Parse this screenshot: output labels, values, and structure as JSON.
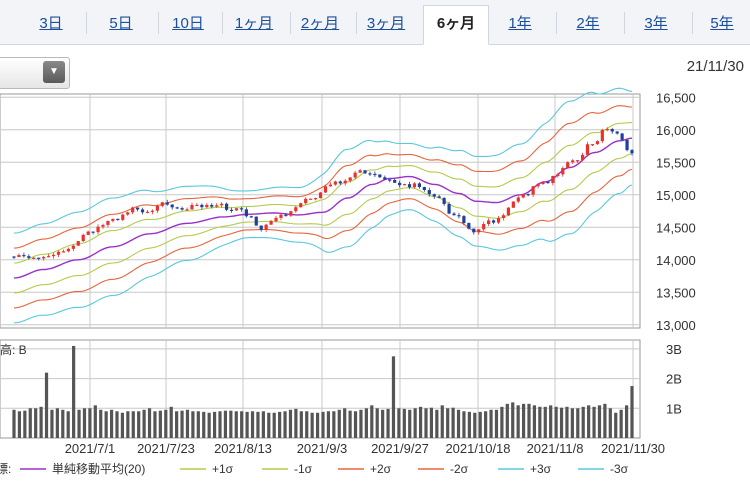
{
  "tabs": [
    {
      "label": "3日",
      "active": false
    },
    {
      "label": "5日",
      "active": false
    },
    {
      "label": "10日",
      "active": false
    },
    {
      "label": "1ヶ月",
      "active": false
    },
    {
      "label": "2ヶ月",
      "active": false
    },
    {
      "label": "3ヶ月",
      "active": false
    },
    {
      "label": "6ヶ月",
      "active": true
    },
    {
      "label": "1年",
      "active": false
    },
    {
      "label": "2年",
      "active": false
    },
    {
      "label": "3年",
      "active": false
    },
    {
      "label": "5年",
      "active": false
    }
  ],
  "dropdown": {
    "icon": "chevron-down-icon"
  },
  "as_of_date": "21/11/30",
  "chart_data": {
    "type": "line",
    "price_axis": {
      "ticks": [
        "16,500",
        "16,000",
        "15,500",
        "15,000",
        "14,500",
        "14,000",
        "13,500",
        "13,000"
      ],
      "ylim": [
        12950,
        16550
      ]
    },
    "x_ticks": [
      "2021/7/1",
      "2021/7/23",
      "2021/8/13",
      "2021/9/3",
      "2021/9/27",
      "2021/10/18",
      "2021/11/8",
      "2021/11/30"
    ],
    "volume_axis": {
      "ticks": [
        "3B",
        "2B",
        "1B"
      ]
    },
    "volume_prefix": "出来高: B",
    "legend_prefix": "指標:",
    "series": [
      {
        "name": "単純移動平均(20)",
        "color": "#9b30c8"
      },
      {
        "name": "+1σ",
        "color": "#b4cc4a"
      },
      {
        "name": "-1σ",
        "color": "#b4cc4a"
      },
      {
        "name": "+2σ",
        "color": "#e8663d"
      },
      {
        "name": "-2σ",
        "color": "#e8663d"
      },
      {
        "name": "+3σ",
        "color": "#5ac8dc"
      },
      {
        "name": "-3σ",
        "color": "#5ac8dc"
      }
    ],
    "mid_points": [
      [
        0,
        13720
      ],
      [
        12,
        13850
      ],
      [
        26,
        14000
      ],
      [
        40,
        14200
      ],
      [
        55,
        14400
      ],
      [
        70,
        14560
      ],
      [
        85,
        14660
      ],
      [
        95,
        14700
      ],
      [
        105,
        14720
      ],
      [
        115,
        14690
      ],
      [
        125,
        14730
      ],
      [
        135,
        14950
      ],
      [
        145,
        15160
      ],
      [
        152,
        15250
      ],
      [
        160,
        15280
      ],
      [
        170,
        15160
      ],
      [
        180,
        15020
      ],
      [
        187,
        14900
      ],
      [
        195,
        14880
      ],
      [
        205,
        15000
      ],
      [
        215,
        15200
      ],
      [
        225,
        15420
      ],
      [
        235,
        15650
      ],
      [
        245,
        15830
      ],
      [
        250,
        15870
      ]
    ],
    "sigma": [
      [
        0,
        230
      ],
      [
        40,
        250
      ],
      [
        70,
        190
      ],
      [
        95,
        120
      ],
      [
        115,
        140
      ],
      [
        135,
        250
      ],
      [
        160,
        170
      ],
      [
        187,
        230
      ],
      [
        205,
        260
      ],
      [
        225,
        340
      ],
      [
        245,
        270
      ],
      [
        250,
        240
      ]
    ],
    "candles_seed": 14050,
    "up_color": "#e8332d",
    "down_color": "#1f3fa0",
    "volume_bars_bn": [
      0.95,
      0.9,
      0.92,
      1.0,
      1.0,
      1.05,
      2.2,
      0.95,
      1.0,
      0.95,
      0.9,
      3.1,
      0.95,
      1.0,
      1.0,
      1.1,
      0.95,
      0.9,
      0.95,
      0.9,
      0.85,
      0.9,
      0.9,
      0.9,
      0.95,
      1.0,
      0.9,
      0.92,
      0.95,
      1.05,
      0.9,
      0.92,
      0.95,
      0.9,
      0.9,
      0.88,
      0.85,
      0.88,
      0.9,
      0.92,
      0.92,
      0.9,
      0.9,
      0.88,
      0.9,
      0.88,
      0.9,
      0.85,
      0.85,
      0.88,
      0.9,
      0.95,
      0.98,
      0.9,
      0.9,
      0.85,
      0.85,
      0.88,
      0.9,
      0.9,
      0.95,
      1.0,
      0.92,
      0.9,
      0.95,
      1.0,
      1.1,
      1.0,
      0.95,
      0.98,
      2.75,
      1.0,
      0.98,
      0.95,
      1.0,
      1.05,
      1.0,
      1.02,
      0.95,
      1.1,
      1.0,
      1.02,
      0.95,
      0.9,
      0.88,
      0.85,
      0.88,
      0.9,
      0.95,
      0.95,
      1.05,
      1.15,
      1.2,
      1.1,
      1.15,
      1.15,
      1.1,
      1.05,
      1.05,
      1.1,
      1.05,
      1.02,
      1.05,
      1.0,
      1.0,
      1.05,
      1.1,
      1.05,
      1.1,
      1.15,
      1.0,
      0.85,
      0.95,
      1.1,
      1.75
    ]
  }
}
